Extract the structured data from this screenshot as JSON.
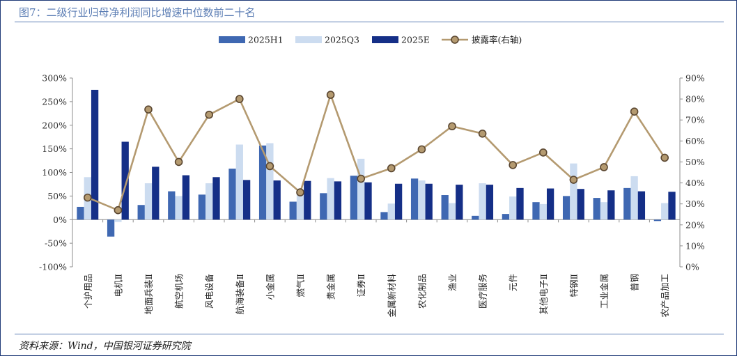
{
  "title": "图7：二级行业归母净利润同比增速中位数前二十名",
  "source": "资料来源：Wind，中国银河证券研究院",
  "colors": {
    "h1": "#3f68b2",
    "q3": "#ccdcf0",
    "e": "#152f87",
    "line": "#b49a70",
    "marker_fill": "#b49a70",
    "marker_edge": "#5a4630"
  },
  "chart_data": {
    "type": "bar",
    "categories": [
      "个护用品",
      "电机Ⅱ",
      "地面兵装Ⅱ",
      "航空机场",
      "风电设备",
      "航海装备Ⅱ",
      "小金属",
      "燃气Ⅱ",
      "贵金属",
      "证券Ⅱ",
      "金属新材料",
      "农化制品",
      "渔业",
      "医疗服务",
      "元件",
      "其他电子Ⅱ",
      "特钢Ⅱ",
      "工业金属",
      "普钢",
      "农产品加工"
    ],
    "series": [
      {
        "name": "2025H1",
        "axis": "left",
        "type": "bar",
        "values": [
          27,
          -36,
          31,
          60,
          53,
          108,
          157,
          38,
          56,
          93,
          16,
          87,
          52,
          8,
          12,
          37,
          50,
          46,
          67,
          -3
        ]
      },
      {
        "name": "2025Q3",
        "axis": "left",
        "type": "bar",
        "values": [
          90,
          -5,
          77,
          50,
          77,
          159,
          162,
          55,
          88,
          129,
          34,
          83,
          35,
          77,
          49,
          33,
          119,
          37,
          92,
          35
        ]
      },
      {
        "name": "2025E",
        "axis": "left",
        "type": "bar",
        "values": [
          275,
          165,
          112,
          94,
          90,
          84,
          83,
          82,
          81,
          79,
          76,
          76,
          74,
          74,
          67,
          66,
          65,
          62,
          60,
          59
        ]
      },
      {
        "name": "披露率(右轴)",
        "axis": "right",
        "type": "line",
        "values": [
          33,
          27,
          75,
          50,
          72.5,
          80,
          48,
          35.5,
          82,
          42,
          47,
          56,
          67,
          63.5,
          48.5,
          54.5,
          41.5,
          47.5,
          74,
          52
        ]
      }
    ],
    "yaxis_left": {
      "min": -100,
      "max": 300,
      "step": 50,
      "ticks": [
        "-100%",
        "-50%",
        "0%",
        "50%",
        "100%",
        "150%",
        "200%",
        "250%",
        "300%"
      ]
    },
    "yaxis_right": {
      "min": 0,
      "max": 90,
      "step": 10,
      "ticks": [
        "0%",
        "10%",
        "20%",
        "30%",
        "40%",
        "50%",
        "60%",
        "70%",
        "80%",
        "90%"
      ]
    },
    "legend": {
      "position": "top",
      "items": [
        "2025H1",
        "2025Q3",
        "2025E",
        "披露率(右轴)"
      ]
    },
    "grid": false
  }
}
